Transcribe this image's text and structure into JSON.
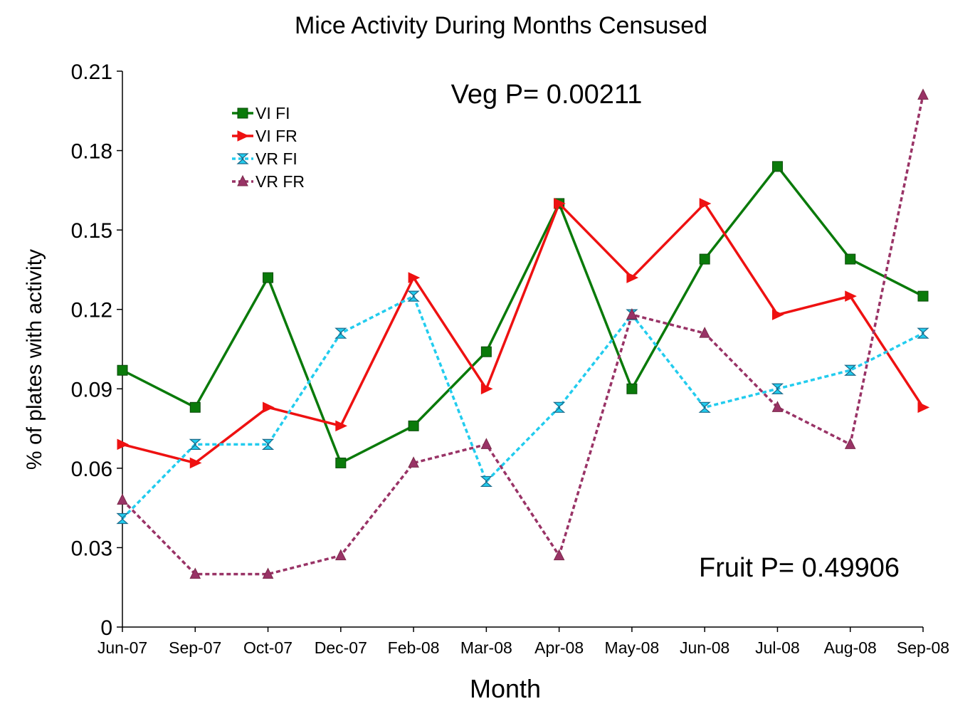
{
  "chart_data": {
    "type": "line",
    "title": "Mice Activity During Months Censused",
    "xlabel": "Month",
    "ylabel": "% of plates with activity",
    "ylim": [
      0,
      0.21
    ],
    "yticks": [
      "0",
      "0.03",
      "0.06",
      "0.09",
      "0.12",
      "0.15",
      "0.18",
      "0.21"
    ],
    "categories": [
      "Jun-07",
      "Sep-07",
      "Oct-07",
      "Dec-07",
      "Feb-08",
      "Mar-08",
      "Apr-08",
      "May-08",
      "Jun-08",
      "Jul-08",
      "Aug-08",
      "Sep-08"
    ],
    "grid": false,
    "legend_position": "top-left",
    "annotations": {
      "veg": "Veg P= 0.00211",
      "fruit": "Fruit P= 0.49906"
    },
    "series": [
      {
        "name": "VI FI",
        "color": "#0a7a0a",
        "marker": "square",
        "dash": "solid",
        "values": [
          0.097,
          0.083,
          0.132,
          0.062,
          0.076,
          0.104,
          0.16,
          0.09,
          0.139,
          0.174,
          0.139,
          0.125
        ]
      },
      {
        "name": "VI FR",
        "color": "#ee1111",
        "marker": "triangle-right",
        "dash": "solid",
        "values": [
          0.069,
          0.062,
          0.083,
          0.076,
          0.132,
          0.09,
          0.16,
          0.132,
          0.16,
          0.118,
          0.125,
          0.083
        ]
      },
      {
        "name": "VR FI",
        "color": "#22ccee",
        "marker": "hourglass",
        "dash": "dotted",
        "values": [
          0.041,
          0.069,
          0.069,
          0.111,
          0.125,
          0.055,
          0.083,
          0.118,
          0.083,
          0.09,
          0.097,
          0.111
        ]
      },
      {
        "name": "VR FR",
        "color": "#993366",
        "marker": "triangle-up",
        "dash": "dotted",
        "values": [
          0.048,
          0.02,
          0.02,
          0.027,
          0.062,
          0.069,
          0.027,
          0.118,
          0.111,
          0.083,
          0.069,
          0.201
        ]
      }
    ]
  }
}
